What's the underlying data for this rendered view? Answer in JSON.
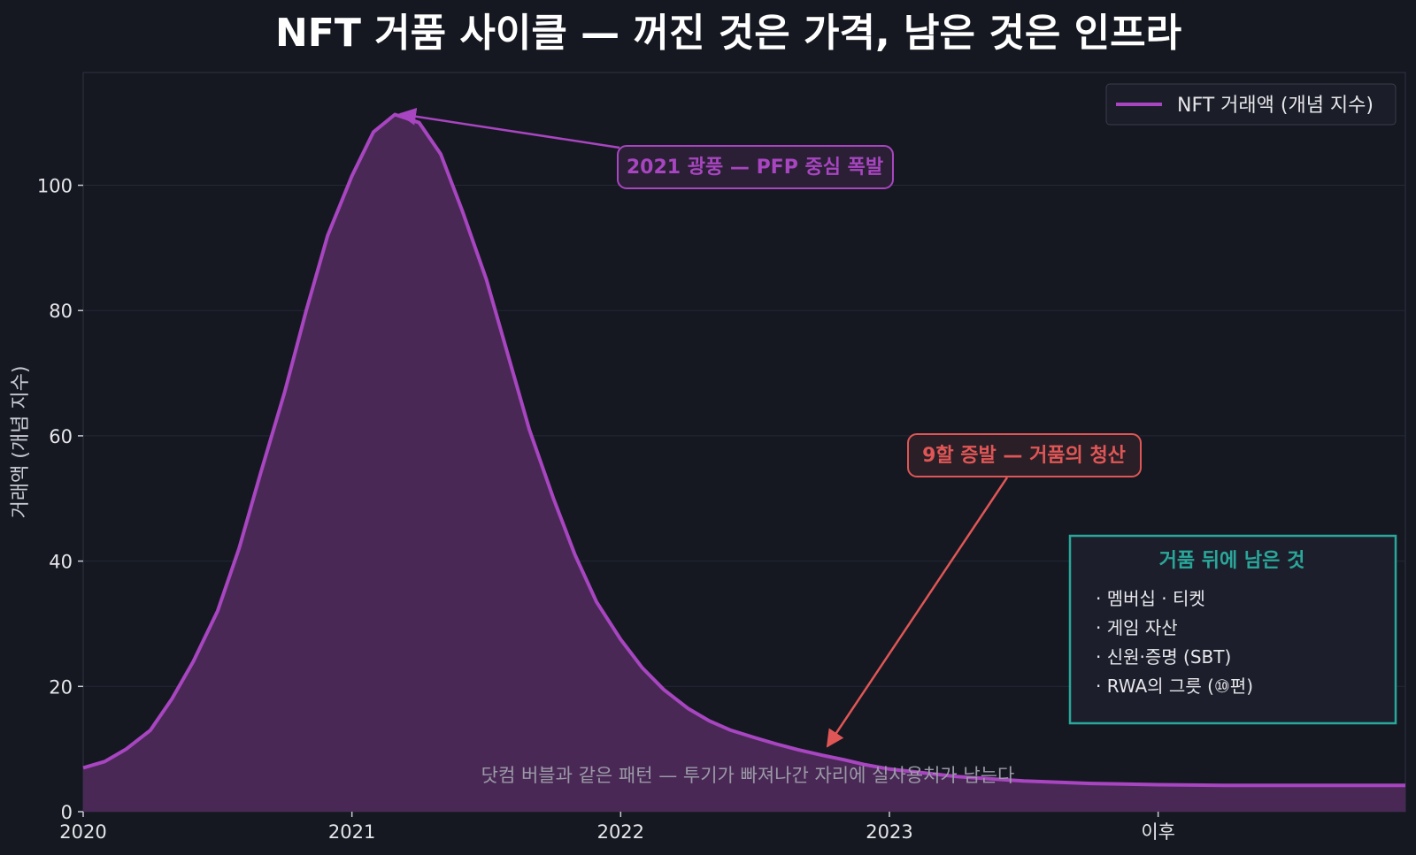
{
  "chart_data": {
    "type": "area",
    "title": "NFT 거품 사이클 — 꺼진 것은 가격, 남은 것은 인프라",
    "ylabel": "거래액 (개념 지수)",
    "xlabel": "",
    "xlim": [
      2020,
      2024.92
    ],
    "ylim": [
      0,
      118
    ],
    "x_ticks": [
      {
        "value": 2020,
        "label": "2020"
      },
      {
        "value": 2021,
        "label": "2021"
      },
      {
        "value": 2022,
        "label": "2022"
      },
      {
        "value": 2023,
        "label": "2023"
      },
      {
        "value": 2024,
        "label": "이후"
      }
    ],
    "y_ticks": [
      0,
      20,
      40,
      60,
      80,
      100
    ],
    "grid": "horizontal",
    "legend": {
      "position": "top-right",
      "entries": [
        "NFT 거래액 (개념 지수)"
      ]
    },
    "colors": {
      "line": "#a845c0",
      "fill": "#4a2856",
      "background": "#151821",
      "peak_annotation": "#a845c0",
      "crash_annotation": "#e05656",
      "legacy_box": "#2aa79b",
      "footnote": "#9a9aa6"
    },
    "series": [
      {
        "name": "NFT 거래액 (개념 지수)",
        "x": [
          2020.0,
          2020.08,
          2020.16,
          2020.25,
          2020.33,
          2020.41,
          2020.5,
          2020.58,
          2020.66,
          2020.75,
          2020.83,
          2020.91,
          2021.0,
          2021.08,
          2021.16,
          2021.25,
          2021.33,
          2021.41,
          2021.5,
          2021.58,
          2021.66,
          2021.75,
          2021.83,
          2021.91,
          2022.0,
          2022.08,
          2022.16,
          2022.25,
          2022.33,
          2022.41,
          2022.5,
          2022.58,
          2022.66,
          2022.75,
          2022.83,
          2022.91,
          2023.0,
          2023.25,
          2023.5,
          2023.75,
          2024.0,
          2024.25,
          2024.5,
          2024.75,
          2024.92
        ],
        "values": [
          7,
          8,
          10,
          13,
          18,
          24,
          32,
          42,
          54,
          67,
          80,
          92,
          101.5,
          108.5,
          111.3,
          110,
          105,
          96,
          85,
          73,
          61,
          50,
          41,
          33.5,
          27.5,
          23,
          19.5,
          16.5,
          14.5,
          13,
          11.8,
          10.8,
          9.9,
          9,
          8.3,
          7.5,
          6.8,
          5.6,
          4.9,
          4.5,
          4.3,
          4.2,
          4.2,
          4.2,
          4.2
        ]
      }
    ],
    "annotations": [
      {
        "text": "2021 광풍 — PFP 중심 폭발",
        "x": 2021.18,
        "y": 111.3
      },
      {
        "text": "9할 증발 — 거품의 청산",
        "x": 2022.75,
        "y": 10
      }
    ]
  },
  "legacy_box": {
    "title": "거품 뒤에 남은 것",
    "items": [
      "· 멤버십 · 티켓",
      "· 게임 자산",
      "· 신원·증명 (SBT)",
      "· RWA의 그릇 (⑩편)"
    ]
  },
  "footnote": "닷컴 버블과 같은 패턴 — 투기가 빠져나간 자리에 실사용처가 남는다"
}
